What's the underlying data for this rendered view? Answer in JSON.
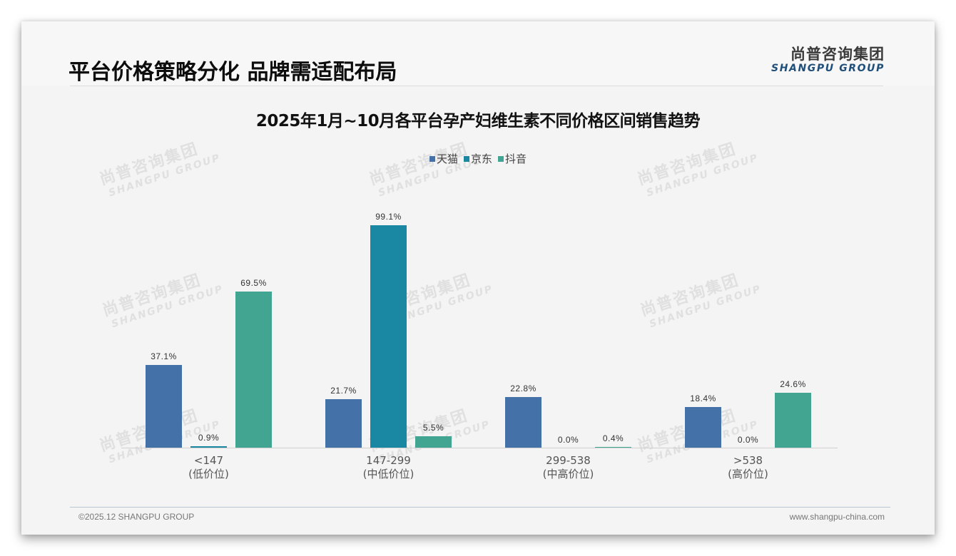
{
  "header": {
    "title": "平台价格策略分化 品牌需适配布局",
    "logo_cn": "尚普咨询集团",
    "logo_en": "SHANGPU GROUP"
  },
  "watermark": {
    "cn": "尚普咨询集团",
    "en": "SHANGPU GROUP"
  },
  "footer": {
    "copyright": "©2025.12 SHANGPU GROUP",
    "website": "www.shangpu-china.com"
  },
  "colors": {
    "tmall": "#4472a8",
    "jd": "#1a88a2",
    "douyin": "#42a592"
  },
  "chart_data": {
    "type": "bar",
    "title": "2025年1月~10月各平台孕产妇维生素不同价格区间销售趋势",
    "xlabel": "",
    "ylabel": "",
    "ylim": [
      0,
      100
    ],
    "grid": false,
    "legend_position": "top",
    "categories": [
      "<147\n(低价位)",
      "147-299\n(中低价位)",
      "299-538\n(中高价位)",
      ">538\n(高价位)"
    ],
    "category_ranges": [
      "<147",
      "147-299",
      "299-538",
      ">538"
    ],
    "category_tiers": [
      "(低价位)",
      "(中低价位)",
      "(中高价位)",
      "(高价位)"
    ],
    "series": [
      {
        "name": "天猫",
        "color": "#4472a8",
        "values": [
          37.1,
          21.7,
          22.8,
          18.4
        ],
        "labels": [
          "37.1%",
          "21.7%",
          "22.8%",
          "18.4%"
        ]
      },
      {
        "name": "京东",
        "color": "#1a88a2",
        "values": [
          0.9,
          99.1,
          0.0,
          0.0
        ],
        "labels": [
          "0.9%",
          "99.1%",
          "0.0%",
          "0.0%"
        ]
      },
      {
        "name": "抖音",
        "color": "#42a592",
        "values": [
          69.5,
          5.5,
          0.4,
          24.6
        ],
        "labels": [
          "69.5%",
          "5.5%",
          "0.4%",
          "24.6%"
        ]
      }
    ]
  }
}
